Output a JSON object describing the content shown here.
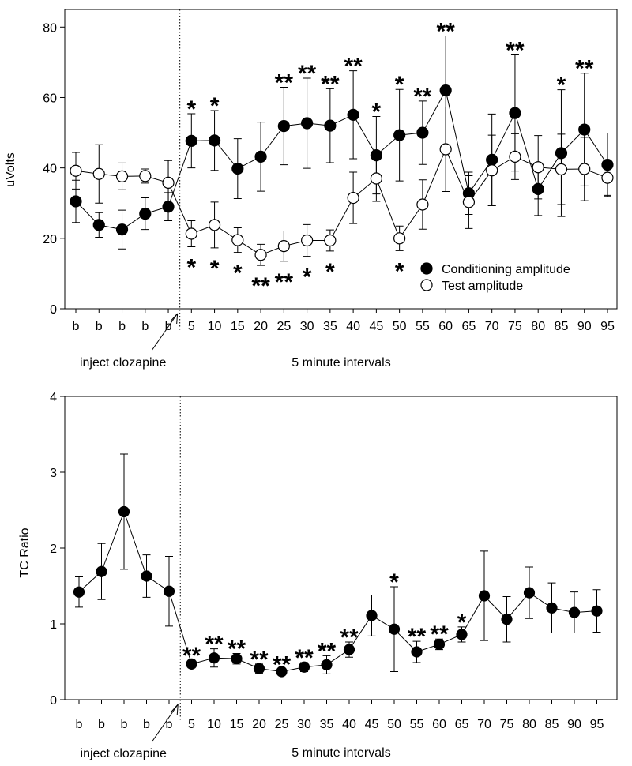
{
  "chart_data": [
    {
      "type": "line",
      "ylabel": "uVolts",
      "xlabel": "5 minute intervals",
      "annotation": "inject clozapine",
      "categories": [
        "b",
        "b",
        "b",
        "b",
        "b",
        "5",
        "10",
        "15",
        "20",
        "25",
        "30",
        "35",
        "40",
        "45",
        "50",
        "55",
        "60",
        "65",
        "70",
        "75",
        "80",
        "85",
        "90",
        "95"
      ],
      "ylim": [
        0,
        85
      ],
      "yticks": [
        0,
        20,
        40,
        60,
        80
      ],
      "legend": "lower right",
      "series": [
        {
          "name": "Conditioning amplitude",
          "color": "#000000",
          "marker_fill": "#000000",
          "significance_side": "above",
          "values": [
            30.5,
            23.8,
            22.5,
            27,
            29,
            47.7,
            47.8,
            39.8,
            43.2,
            51.9,
            52.7,
            52,
            55.1,
            43.6,
            49.3,
            50,
            62,
            32.8,
            42.3,
            55.6,
            34,
            44.2,
            50.9,
            40.9
          ],
          "errors": [
            6,
            3.5,
            5.5,
            4.5,
            4,
            7.7,
            8.5,
            8.5,
            9.8,
            11,
            12.8,
            10.5,
            12.5,
            11,
            13,
            9,
            15.5,
            6,
            13,
            16.5,
            7.5,
            18,
            16,
            9
          ],
          "significance": [
            null,
            null,
            null,
            null,
            null,
            "*",
            "*",
            null,
            null,
            "**",
            "**",
            "**",
            "**",
            "*",
            "*",
            "**",
            "**",
            null,
            null,
            "**",
            null,
            "*",
            "**",
            null
          ]
        },
        {
          "name": "Test amplitude",
          "color": "#000000",
          "marker_fill": "#ffffff",
          "significance_side": "below",
          "values": [
            39.2,
            38.3,
            37.6,
            37.7,
            35.8,
            21.3,
            23.8,
            19.5,
            15.3,
            17.8,
            19.4,
            19.4,
            31.5,
            37,
            20,
            29.6,
            45.3,
            30.3,
            39.3,
            43.2,
            40.2,
            39.6,
            39.7,
            37.2
          ],
          "errors": [
            5.2,
            8.3,
            3.8,
            2,
            6.3,
            3.7,
            6.5,
            3.5,
            3,
            4.3,
            4.5,
            3,
            7.3,
            6.5,
            3.5,
            7,
            12,
            7.5,
            10,
            6.5,
            9,
            10,
            9,
            5
          ],
          "significance": [
            null,
            null,
            null,
            null,
            null,
            "*",
            "*",
            "*",
            "**",
            "**",
            "*",
            "*",
            null,
            null,
            "*",
            null,
            null,
            null,
            null,
            null,
            null,
            null,
            null,
            null
          ]
        }
      ]
    },
    {
      "type": "line",
      "ylabel": "TC Ratio",
      "xlabel": "5 minute intervals",
      "annotation": "inject clozapine",
      "categories": [
        "b",
        "b",
        "b",
        "b",
        "b",
        "5",
        "10",
        "15",
        "20",
        "25",
        "30",
        "35",
        "40",
        "45",
        "50",
        "55",
        "60",
        "65",
        "70",
        "75",
        "80",
        "85",
        "90",
        "95"
      ],
      "ylim": [
        0,
        4
      ],
      "yticks": [
        0,
        1,
        2,
        3,
        4
      ],
      "color": "#000000",
      "marker_fill": "#000000",
      "significance_side": "above",
      "values": [
        1.42,
        1.69,
        2.48,
        1.63,
        1.43,
        0.47,
        0.55,
        0.54,
        0.41,
        0.37,
        0.43,
        0.46,
        0.66,
        1.11,
        0.93,
        0.63,
        0.73,
        0.86,
        1.37,
        1.06,
        1.41,
        1.21,
        1.15,
        1.17
      ],
      "errors": [
        0.2,
        0.37,
        0.76,
        0.28,
        0.46,
        0.05,
        0.12,
        0.07,
        0.06,
        0.03,
        0.06,
        0.12,
        0.1,
        0.27,
        0.56,
        0.14,
        0.07,
        0.1,
        0.59,
        0.3,
        0.34,
        0.33,
        0.27,
        0.28
      ],
      "significance": [
        null,
        null,
        null,
        null,
        null,
        "**",
        "**",
        "**",
        "**",
        "**",
        "**",
        "**",
        "**",
        null,
        "*",
        "**",
        "**",
        "*",
        null,
        null,
        null,
        null,
        null,
        null
      ]
    }
  ]
}
